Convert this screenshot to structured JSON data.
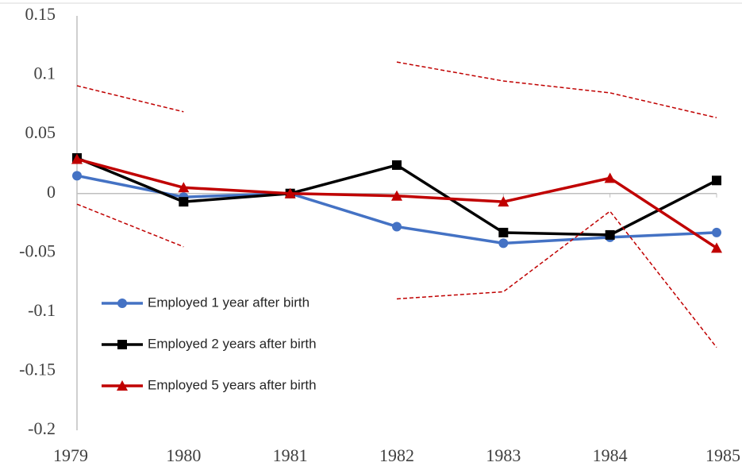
{
  "chart_data": {
    "type": "line",
    "categories": [
      "1979",
      "1980",
      "1981",
      "1982",
      "1983",
      "1984",
      "1985"
    ],
    "series": [
      {
        "name": "Employed 1 year after birth",
        "color": "#4472c4",
        "marker": "circle",
        "values": [
          0.015,
          -0.003,
          0,
          -0.028,
          -0.042,
          -0.037,
          -0.033
        ]
      },
      {
        "name": "Employed 2 years after birth",
        "color": "#000000",
        "marker": "square",
        "values": [
          0.03,
          -0.007,
          0,
          0.024,
          -0.033,
          -0.035,
          0.011
        ]
      },
      {
        "name": "Employed 5 years after birth",
        "color": "#c00000",
        "marker": "triangle",
        "values": [
          0.029,
          0.005,
          0,
          -0.002,
          -0.007,
          0.013,
          -0.046
        ]
      },
      {
        "color": "#c00000",
        "dashed": true,
        "values": [
          0.091,
          0.069,
          null,
          0.111,
          0.095,
          0.085,
          0.064
        ]
      },
      {
        "color": "#c00000",
        "dashed": true,
        "values": [
          -0.009,
          -0.045,
          null,
          -0.089,
          -0.083,
          -0.015,
          -0.13
        ]
      }
    ],
    "ylim": [
      -0.2,
      0.15
    ],
    "yticks": [
      0.15,
      0.1,
      0.05,
      0,
      -0.05,
      -0.1,
      -0.15,
      -0.2
    ],
    "grid": false,
    "legend": "lower left"
  }
}
